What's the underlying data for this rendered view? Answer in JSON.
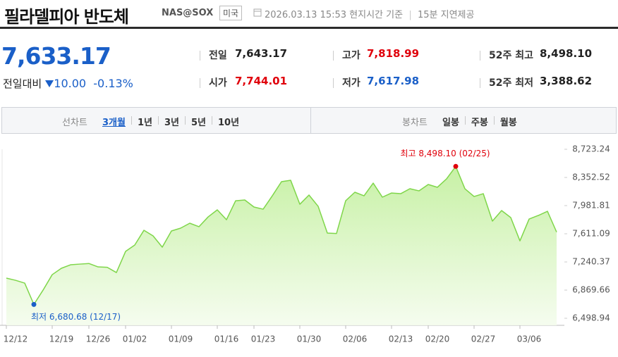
{
  "header": {
    "title": "필라델피아 반도체",
    "code": "NAS@SOX",
    "market": "미국",
    "datetime": "2026.03.13 15:53",
    "time_note": "현지시간 기준",
    "delay_note": "15분 지연제공"
  },
  "quote": {
    "price": "7,633.17",
    "change_label": "전일대비",
    "change": "10.00",
    "change_pct": "-0.13%"
  },
  "stats": [
    {
      "label": "전일",
      "value": "7,643.17",
      "color": "#222222"
    },
    {
      "label": "고가",
      "value": "7,818.99",
      "color": "#e0000b"
    },
    {
      "label": "52주 최고",
      "value": "8,498.10",
      "color": "#222222"
    },
    {
      "label": "시가",
      "value": "7,744.01",
      "color": "#e0000b"
    },
    {
      "label": "저가",
      "value": "7,617.98",
      "color": "#1a5fc8"
    },
    {
      "label": "52주 최저",
      "value": "3,388.62",
      "color": "#222222"
    }
  ],
  "tabs": {
    "line_label": "선차트",
    "line_items": [
      "3개월",
      "1년",
      "3년",
      "5년",
      "10년"
    ],
    "candle_label": "봉차트",
    "candle_items": [
      "일봉",
      "주봉",
      "월봉"
    ]
  },
  "chart_data": {
    "type": "area",
    "color": "#7fd64a",
    "categories": [
      "12/12",
      null,
      null,
      null,
      null,
      "12/19",
      null,
      null,
      null,
      "12/26",
      null,
      null,
      null,
      "01/02",
      null,
      null,
      null,
      null,
      "01/09",
      null,
      null,
      null,
      null,
      "01/16",
      null,
      null,
      null,
      "01/23",
      null,
      null,
      null,
      null,
      "01/30",
      null,
      null,
      null,
      null,
      "02/06",
      null,
      null,
      null,
      null,
      "02/13",
      null,
      null,
      null,
      "02/20",
      null,
      null,
      null,
      null,
      "02/27",
      null,
      null,
      null,
      null,
      "03/06",
      null,
      null,
      null,
      null
    ],
    "values": [
      7027,
      6999,
      6962,
      6680.68,
      6869,
      7073,
      7157,
      7203,
      7212,
      7220,
      7175,
      7170,
      7101,
      7379,
      7463,
      7657,
      7583,
      7435,
      7648,
      7685,
      7750,
      7704,
      7833,
      7926,
      7796,
      8046,
      8056,
      7963,
      7935,
      8111,
      8297,
      8315,
      8000,
      8121,
      7972,
      7620,
      7615,
      8046,
      8158,
      8111,
      8278,
      8093,
      8148,
      8139,
      8204,
      8176,
      8260,
      8223,
      8334,
      8498.1,
      8204,
      8102,
      8139,
      7778,
      7917,
      7824,
      7518,
      7805,
      7852,
      7907,
      7633.17
    ],
    "high_label": "최고 8,498.10 (02/25)",
    "low_label": "최저 6,680.68 (12/17)",
    "high_color": "#e0000b",
    "low_color": "#1a5fc8",
    "ylim": [
      6498.94,
      8723.24
    ],
    "yticks": [
      {
        "value": 8723.24,
        "label": "8,723.24"
      },
      {
        "value": 8352.52,
        "label": "8,352.52"
      },
      {
        "value": 7981.81,
        "label": "7,981.81"
      },
      {
        "value": 7611.09,
        "label": "7,611.09"
      },
      {
        "value": 7240.37,
        "label": "7,240.37"
      },
      {
        "value": 6869.66,
        "label": "6,869.66"
      },
      {
        "value": 6498.94,
        "label": "6,498.94"
      }
    ],
    "grid": false
  }
}
